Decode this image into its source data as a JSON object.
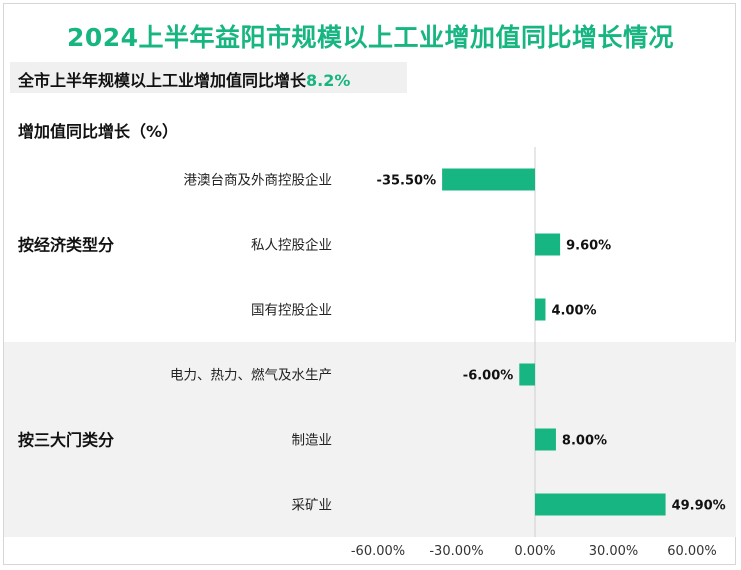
{
  "title": "2024上半年益阳市规模以上工业增加值同比增长情况",
  "summary": {
    "label": "全市上半年规模以上工业增加值同比增长",
    "value": "8.2%"
  },
  "colors": {
    "accent": "#17b581",
    "group_band": "#f2f2f2",
    "bar": "#17b581"
  },
  "chart_data": {
    "type": "bar",
    "orientation": "horizontal",
    "ylabel": "增加值同比增长（%）",
    "xlim": [
      -60,
      60
    ],
    "x_ticks": [
      -60,
      -30,
      0,
      30,
      60
    ],
    "x_tick_labels": [
      "-60.00%",
      "-30.00%",
      "0.00%",
      "30.00%",
      "60.00%"
    ],
    "groups": [
      {
        "name": "按经济类型分",
        "categories": [
          "港澳台商及外商控股企业",
          "私人控股企业",
          "国有控股企业"
        ],
        "values": [
          -35.5,
          9.6,
          4.0
        ],
        "labels": [
          "-35.50%",
          "9.60%",
          "4.00%"
        ]
      },
      {
        "name": "按三大门类分",
        "categories": [
          "电力、热力、燃气及水生产",
          "制造业",
          "采矿业"
        ],
        "values": [
          -6.0,
          8.0,
          49.9
        ],
        "labels": [
          "-6.00%",
          "8.00%",
          "49.90%"
        ]
      }
    ]
  }
}
